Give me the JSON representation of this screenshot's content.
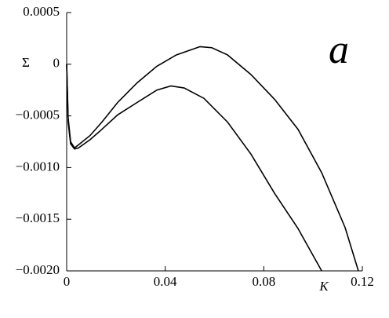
{
  "chart_data": {
    "type": "line",
    "y_label": "Σ",
    "x_label": "K",
    "annotation": "a",
    "xlim": [
      0,
      0.12
    ],
    "ylim": [
      -0.002,
      0.0005
    ],
    "xticks": [
      0,
      0.04,
      0.08,
      0.12
    ],
    "yticks": [
      0.0005,
      0,
      {
        "value": -0.0005,
        "label": "−0.0005"
      },
      {
        "value": -0.001,
        "label": "−0.0010"
      },
      {
        "value": -0.0015,
        "label": "−0.0015"
      },
      {
        "value": -0.002,
        "label": "−0.0020"
      }
    ],
    "series": [
      {
        "color": "#000000",
        "x": [
          0,
          0.0006,
          0.0016,
          0.0032,
          0.0048,
          0.0095,
          0.0143,
          0.0207,
          0.0286,
          0.0366,
          0.0445,
          0.0541,
          0.0589,
          0.0653,
          0.0748,
          0.0844,
          0.0939,
          0.1035,
          0.113,
          0.1184
        ],
        "values": [
          0,
          -0.00052,
          -0.00075,
          -0.00081,
          -0.00078,
          -0.00069,
          -0.00056,
          -0.00037,
          -0.00018,
          -2e-05,
          9e-05,
          0.00017,
          0.00016,
          9e-05,
          -0.0001,
          -0.00034,
          -0.00063,
          -0.00105,
          -0.00158,
          -0.002
        ]
      },
      {
        "color": "#000000",
        "x": [
          0,
          0.0006,
          0.0016,
          0.0032,
          0.0048,
          0.0095,
          0.0143,
          0.0207,
          0.0286,
          0.0366,
          0.0423,
          0.0477,
          0.0557,
          0.0653,
          0.0748,
          0.0844,
          0.0939,
          0.1035
        ],
        "values": [
          0,
          -0.00056,
          -0.00077,
          -0.00082,
          -0.00081,
          -0.00073,
          -0.00063,
          -0.00049,
          -0.00037,
          -0.00025,
          -0.00021,
          -0.00023,
          -0.00033,
          -0.00056,
          -0.00087,
          -0.00125,
          -0.00159,
          -0.002
        ]
      }
    ]
  }
}
